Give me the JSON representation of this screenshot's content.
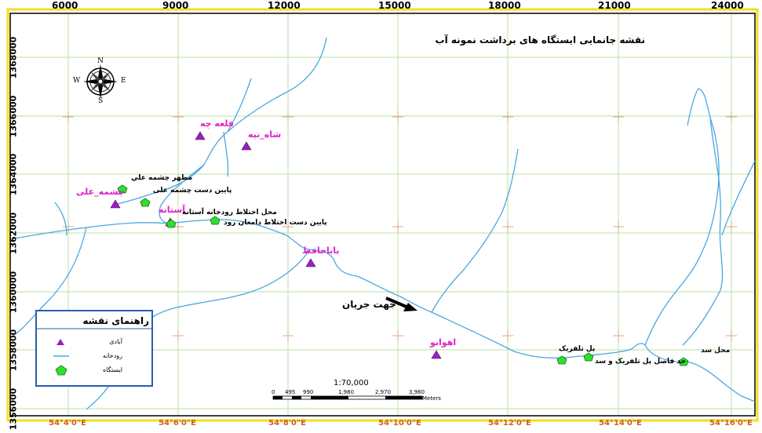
{
  "title": "نقشه جانمایی ایستگاه های برداشت نمونه آب",
  "top_axis": [
    "6000",
    "9000",
    "12000",
    "15000",
    "18000",
    "21000",
    "24000"
  ],
  "left_axis": [
    "1368000",
    "1366000",
    "1364000",
    "1362000",
    "1360000",
    "1358000",
    "1356000"
  ],
  "bottom_axis": [
    "54°4'0\"E",
    "54°6'0\"E",
    "54°8'0\"E",
    "54°10'0\"E",
    "54°12'0\"E",
    "54°14'0\"E",
    "54°16'0\"E"
  ],
  "towns": [
    "قلعه چه",
    "شاه_تپه",
    "چشمه_علی",
    "آستانه",
    "باباحافظ",
    "اهوانو"
  ],
  "stations": [
    "مظهر چشمه علي",
    "پایین دست چشمه علی",
    "محل اختلاط رودخانه آستانه",
    "پایین دست اختلاط دامغان رود",
    "پل تلفریک",
    "حد فاصل پل تلفریک و سد",
    "محل سد"
  ],
  "flow_label": "جهت جریان",
  "compass": {
    "n": "N",
    "s": "S",
    "e": "E",
    "w": "W"
  },
  "legend": {
    "title": "راهنمای نقشه",
    "items": [
      "آبادی",
      "رودخانه",
      "ایستگاه"
    ]
  },
  "scale": {
    "ratio": "1:70,000",
    "ticks": [
      "0",
      "495",
      "990",
      "1,980",
      "2,970",
      "3,960"
    ],
    "unit": "Meters"
  },
  "colors": {
    "river": "#4aa8e0",
    "town": "#9a1fc0",
    "station": "#2ee02e",
    "grid": "#b8e0a0",
    "border": "#f0e020"
  }
}
